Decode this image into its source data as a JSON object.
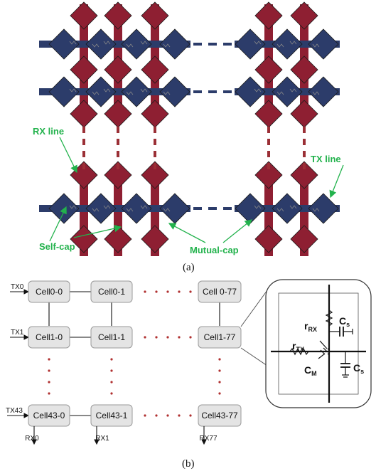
{
  "figure_a": {
    "caption": "(a)",
    "labels": {
      "rx_line": "RX line",
      "tx_line": "TX line",
      "self_cap": "Self-cap",
      "mutual_cap": "Mutual-cap"
    },
    "colors": {
      "rx": "#8e1f32",
      "tx": "#2c3c6a",
      "annotation": "#22b24c",
      "dashes": "#9b2f36"
    }
  },
  "figure_b": {
    "caption": "(b)",
    "rows": [
      {
        "tx": "TX0",
        "cells": [
          "Cell0-0",
          "Cell0-1",
          "Cell 0-77"
        ]
      },
      {
        "tx": "TX1",
        "cells": [
          "Cell1-0",
          "Cell1-1",
          "Cell1-77"
        ]
      },
      {
        "tx": "TX43",
        "cells": [
          "Cell43-0",
          "Cell43-1",
          "Cell43-77"
        ]
      }
    ],
    "rx_labels": [
      "RX0",
      "RX1",
      "RX77"
    ],
    "circuit": {
      "r_rx": "r",
      "r_rx_sub": "RX",
      "r_tx": "r",
      "r_tx_sub": "TX",
      "cs_top": "C",
      "cs_top_sub": "s",
      "cs_right": "C",
      "cs_right_sub": "s",
      "cm": "C",
      "cm_sub": "M"
    }
  }
}
